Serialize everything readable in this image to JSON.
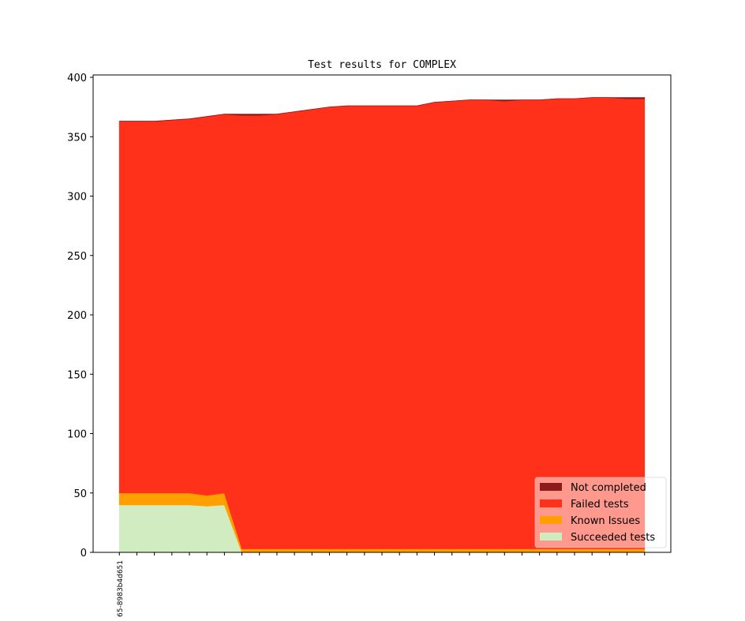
{
  "chart_data": {
    "type": "stacked-area",
    "title": "Test results for COMPLEX",
    "categories": [
      "65-8983b4d651",
      null,
      null,
      null,
      null,
      null,
      null,
      null,
      null,
      null,
      null,
      null,
      null,
      null,
      null,
      null,
      null,
      null,
      null,
      null,
      null,
      null,
      null,
      null,
      null,
      null,
      null,
      null,
      null,
      null,
      null
    ],
    "series": [
      {
        "name": "Not completed",
        "color": "#8c1c1c",
        "values": [
          0,
          0,
          0,
          0,
          0,
          0,
          0,
          1,
          1,
          0,
          0,
          0,
          0,
          0,
          0,
          0,
          0,
          0,
          0,
          0,
          0,
          0,
          1,
          0,
          0,
          0,
          0,
          0,
          0,
          1,
          1
        ]
      },
      {
        "name": "Failed tests",
        "color": "#ff311a",
        "values": [
          313,
          313,
          313,
          314,
          315,
          319,
          319,
          365,
          365,
          366,
          368,
          370,
          372,
          373,
          373,
          373,
          373,
          373,
          376,
          377,
          378,
          378,
          377,
          378,
          378,
          379,
          379,
          380,
          380,
          379,
          379
        ]
      },
      {
        "name": "Known Issues",
        "color": "#ffa000",
        "values": [
          10,
          10,
          10,
          10,
          10,
          9,
          10,
          3,
          3,
          3,
          3,
          3,
          3,
          3,
          3,
          3,
          3,
          3,
          3,
          3,
          3,
          3,
          3,
          3,
          3,
          3,
          3,
          3,
          3,
          3,
          3
        ]
      },
      {
        "name": "Succeeded tests",
        "color": "#d0ecc0",
        "values": [
          40,
          40,
          40,
          40,
          40,
          39,
          40,
          0,
          0,
          0,
          0,
          0,
          0,
          0,
          0,
          0,
          0,
          0,
          0,
          0,
          0,
          0,
          0,
          0,
          0,
          0,
          0,
          0,
          0,
          0,
          0
        ]
      }
    ],
    "ylim": [
      0,
      402
    ],
    "yticks": [
      0,
      50,
      100,
      150,
      200,
      250,
      300,
      350,
      400
    ],
    "legend": "lower right"
  }
}
